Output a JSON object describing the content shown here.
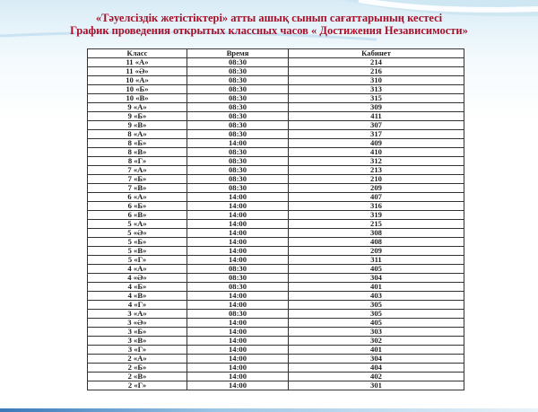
{
  "title_kz": "«Тәуелсіздік  жетістіктері» атты ашық сынып сағаттарының  кестесі",
  "title_ru": "График проведения  открытых  классных  часов « Достижения  Независимости»",
  "colors": {
    "title": "#a8102a"
  },
  "table": {
    "headers": [
      "Класс",
      "Время",
      "Кабинет"
    ],
    "rows": [
      [
        "11 «А»",
        "08:30",
        "214"
      ],
      [
        "11 «Ә»",
        "08:30",
        "216"
      ],
      [
        "10 «А»",
        "08:30",
        "310"
      ],
      [
        "10 «Б»",
        "08:30",
        "313"
      ],
      [
        "10 «В»",
        "08:30",
        "315"
      ],
      [
        "9 «А»",
        "08:30",
        "309"
      ],
      [
        "9 «Б»",
        "08:30",
        "411"
      ],
      [
        "9 «В»",
        "08:30",
        "307"
      ],
      [
        "8 «А»",
        "08:30",
        "317"
      ],
      [
        "8 «Б»",
        "14:00",
        "409"
      ],
      [
        "8 «В»",
        "08:30",
        "410"
      ],
      [
        "8 «Г»",
        "08:30",
        "312"
      ],
      [
        "7 «А»",
        "08:30",
        "213"
      ],
      [
        "7 «Б»",
        "08:30",
        "210"
      ],
      [
        "7 «В»",
        "08:30",
        "209"
      ],
      [
        "6 «А»",
        "14:00",
        "407"
      ],
      [
        "6 «Б»",
        "14:00",
        "316"
      ],
      [
        "6 «В»",
        "14:00",
        "319"
      ],
      [
        "5 «А»",
        "14:00",
        "215"
      ],
      [
        "5 «Ә»",
        "14:00",
        "308"
      ],
      [
        "5 «Б»",
        "14:00",
        "408"
      ],
      [
        "5 «В»",
        "14:00",
        "209"
      ],
      [
        "5 «Г»",
        "14:00",
        "311"
      ],
      [
        "4 «А»",
        "08:30",
        "405"
      ],
      [
        "4 «Ә»",
        "08:30",
        "304"
      ],
      [
        "4 «Б»",
        "08:30",
        "401"
      ],
      [
        "4 «В»",
        "14:00",
        "403"
      ],
      [
        "4 «Г»",
        "14:00",
        "305"
      ],
      [
        "3 «А»",
        "08:30",
        "305"
      ],
      [
        "3 «Ә»",
        "14:00",
        "405"
      ],
      [
        "3 «Б»",
        "14:00",
        "303"
      ],
      [
        "3 «В»",
        "14:00",
        "302"
      ],
      [
        "3 «Г»",
        "14:00",
        "401"
      ],
      [
        "2 «А»",
        "14:00",
        "304"
      ],
      [
        "2 «Б»",
        "14:00",
        "404"
      ],
      [
        "2 «В»",
        "14:00",
        "402"
      ],
      [
        "2 «Г»",
        "14:00",
        "301"
      ]
    ]
  }
}
